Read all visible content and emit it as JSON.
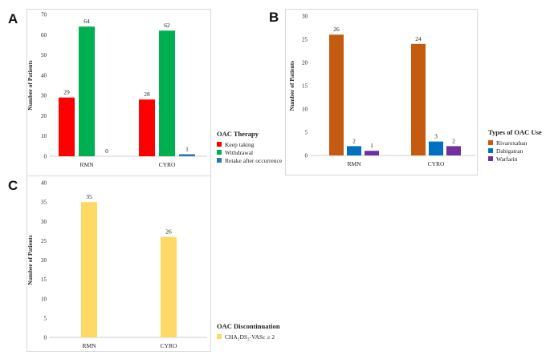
{
  "chart_data": [
    {
      "panel": "A",
      "type": "bar",
      "ylabel": "Number of Patients",
      "ylim": [
        0,
        70
      ],
      "yticks": [
        0,
        10,
        20,
        30,
        40,
        50,
        60,
        70
      ],
      "categories": [
        "RMN",
        "CYRO"
      ],
      "legend_title": "OAC Therapy",
      "series": [
        {
          "name": "Keep taking",
          "color": "#ff0000",
          "values": [
            29,
            28
          ]
        },
        {
          "name": "Withdrawal",
          "color": "#00b050",
          "values": [
            64,
            62
          ]
        },
        {
          "name": "Retake after occurrence",
          "color": "#2e75b6",
          "values": [
            0,
            1
          ]
        }
      ]
    },
    {
      "panel": "B",
      "type": "bar",
      "ylabel": "Number of Patients",
      "ylim": [
        0,
        30
      ],
      "yticks": [
        0,
        5,
        10,
        15,
        20,
        25,
        30
      ],
      "categories": [
        "RMN",
        "CYRO"
      ],
      "legend_title": "Types of OAC Use",
      "series": [
        {
          "name": "Rivaroxaban",
          "color": "#c55a11",
          "values": [
            26,
            24
          ]
        },
        {
          "name": "Dabigatran",
          "color": "#0070c0",
          "values": [
            2,
            3
          ]
        },
        {
          "name": "Warfarin",
          "color": "#7030a0",
          "values": [
            1,
            2
          ]
        }
      ]
    },
    {
      "panel": "C",
      "type": "bar",
      "ylabel": "Number of Patients",
      "ylim": [
        0,
        40
      ],
      "yticks": [
        0,
        5,
        10,
        15,
        20,
        25,
        30,
        35,
        40
      ],
      "categories": [
        "RMN",
        "CYRO"
      ],
      "legend_title": "OAC Discontinuation",
      "series": [
        {
          "name": "CHA₂DS₂-VASc ≥ 2",
          "color": "#ffd966",
          "values": [
            35,
            26
          ]
        }
      ]
    }
  ]
}
